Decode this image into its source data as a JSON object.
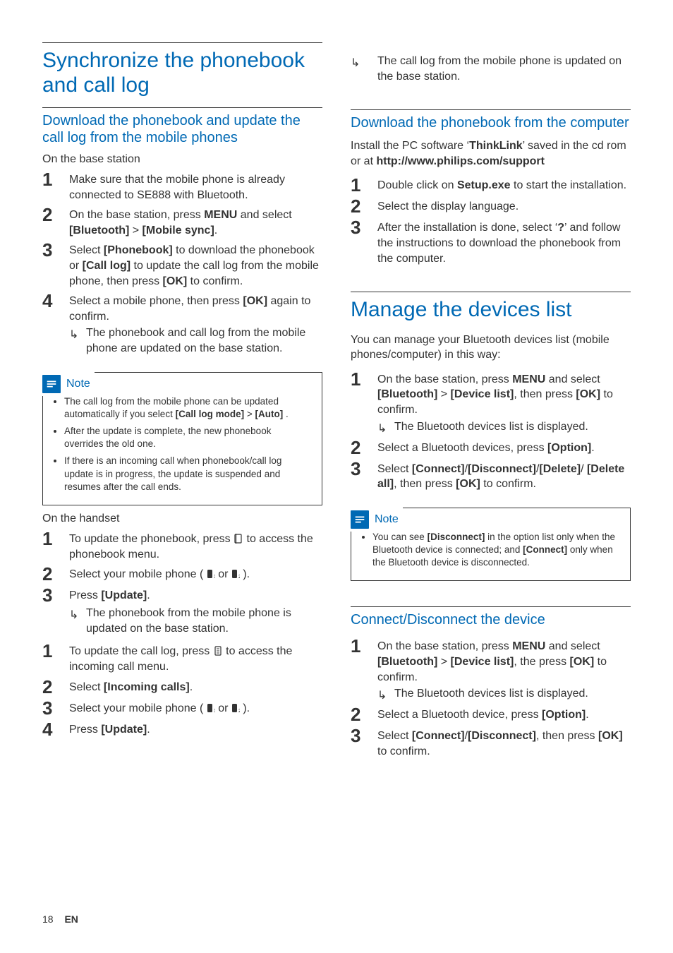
{
  "colors": {
    "accent": "#0069b4",
    "text": "#333333",
    "rule": "#333333",
    "note_border": "#333333",
    "background": "#ffffff"
  },
  "typography": {
    "h1_size_pt": 22,
    "h2_size_pt": 15,
    "body_size_pt": 12,
    "note_size_pt": 10,
    "step_num_size_pt": 20
  },
  "left": {
    "h1": "Synchronize the phonebook and call log",
    "sub1": {
      "title": "Download the phonebook and update the call log from the mobile phones",
      "group1_heading": "On the base station",
      "steps1": [
        "Make sure that the mobile phone is already connected to SE888 with Bluetooth.",
        "On the base station, press <strong>MENU</strong> and select <strong>[Bluetooth]</strong> &gt; <strong>[Mobile sync]</strong>.",
        "Select <strong>[Phonebook]</strong> to download the phonebook or <strong>[Call log]</strong> to update the call log from the mobile phone, then press <strong>[OK]</strong> to confirm.",
        "Select a mobile phone, then press <strong>[OK]</strong> again to confirm."
      ],
      "result1": "The phonebook and call log from the mobile phone are updated on the base station.",
      "note": {
        "label": "Note",
        "items": [
          "The call log from the mobile phone can be updated automatically if you select <strong>[Call log mode]</strong> &gt; <strong>[Auto]</strong> .",
          "After the update is complete, the new phonebook overrides the old one.",
          "If there is an incoming call when phonebook/call log update is in progress, the update is suspended and resumes after the call ends."
        ]
      },
      "group2_heading": "On the handset",
      "steps2a": [
        "To update the phonebook, press {PB} to access the phonebook menu.",
        "Select your mobile phone ( {M1} or {M2} ).",
        "Press <strong>[Update]</strong>."
      ],
      "result2a": "The phonebook from the mobile phone is updated on the base station.",
      "steps2b": [
        "To update the call log, press {CL} to access the incoming call menu.",
        "Select <strong>[Incoming calls]</strong>.",
        "Select your mobile phone ( {M1} or {M2} ).",
        "Press <strong>[Update]</strong>."
      ]
    }
  },
  "right": {
    "top_result": "The call log from the mobile phone is updated on the base station.",
    "sub2": {
      "title": "Download the phonebook from the computer",
      "intro": "Install the PC software ‘<strong>ThinkLink</strong>’ saved in the cd rom or at <strong>http://www.philips.com/support</strong>",
      "steps": [
        "Double click on <strong>Setup.exe</strong> to start the installation.",
        "Select the display language.",
        "After the installation is done, select ‘<strong>?</strong>’ and follow the instructions to download the phonebook from the computer."
      ]
    },
    "h1b": "Manage the devices list",
    "devices": {
      "intro": "You can manage your Bluetooth devices list (mobile phones/computer) in this way:",
      "steps": [
        "On the base station, press <strong>MENU</strong> and select <strong>[Bluetooth]</strong> &gt; <strong>[Device list]</strong>, then press <strong>[OK]</strong> to confirm.",
        "Select a Bluetooth devices, press <strong>[Option]</strong>.",
        "Select <strong>[Connect]</strong>/<strong>[Disconnect]</strong>/<strong>[Delete]</strong>/ <strong>[Delete all]</strong>, then press <strong>[OK]</strong> to confirm."
      ],
      "result1": "The Bluetooth devices list is displayed.",
      "note": {
        "label": "Note",
        "items": [
          "You can see <strong>[Disconnect]</strong> in the option list only when the Bluetooth device is connected; and <strong>[Connect]</strong> only when the Bluetooth device is disconnected."
        ]
      }
    },
    "sub3": {
      "title": "Connect/Disconnect the device",
      "steps": [
        "On the base station, press <strong>MENU</strong> and select <strong>[Bluetooth]</strong> &gt; <strong>[Device list]</strong>, the press <strong>[OK]</strong> to confirm.",
        "Select a Bluetooth device, press <strong>[Option]</strong>.",
        "Select <strong>[Connect]</strong>/<strong>[Disconnect]</strong>, then press <strong>[OK]</strong> to confirm."
      ],
      "result1": "The Bluetooth devices list is displayed."
    }
  },
  "footer": {
    "page": "18",
    "lang": "EN"
  },
  "icons": {
    "phonebook_glyph": "☎",
    "calllog_glyph": "☰",
    "mobile1_label": "1",
    "mobile2_label": "2"
  }
}
